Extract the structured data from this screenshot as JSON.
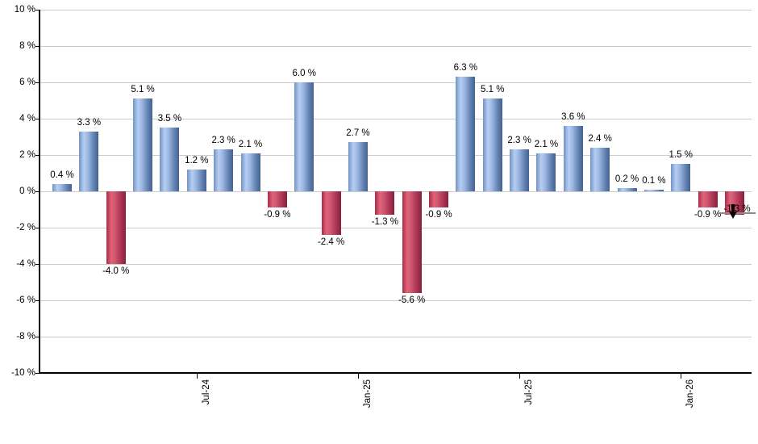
{
  "chart_data": {
    "type": "bar",
    "title": "",
    "xlabel": "",
    "ylabel": "",
    "grid": true,
    "legend": false,
    "ylim": [
      -10,
      10
    ],
    "y_axis": {
      "unit": "%",
      "step": 2,
      "tick_labels": [
        "10 %",
        "8 %",
        "6 %",
        "4 %",
        "2 %",
        "0 %",
        "-2 %",
        "-4 %",
        "-6 %",
        "-8 %",
        "-10 %"
      ]
    },
    "x_axis": {
      "tick_labels": [
        {
          "label": "Jul-24",
          "bar_index": 5
        },
        {
          "label": "Jan-25",
          "bar_index": 11
        },
        {
          "label": "Jul-25",
          "bar_index": 17
        },
        {
          "label": "Jan-26",
          "bar_index": 23
        }
      ]
    },
    "bars": [
      {
        "value": 0.4,
        "label": "0.4 %"
      },
      {
        "value": 3.3,
        "label": "3.3 %"
      },
      {
        "value": -4.0,
        "label": "-4.0 %"
      },
      {
        "value": 5.1,
        "label": "5.1 %"
      },
      {
        "value": 3.5,
        "label": "3.5 %"
      },
      {
        "value": 1.2,
        "label": "1.2 %"
      },
      {
        "value": 2.3,
        "label": "2.3 %"
      },
      {
        "value": 2.1,
        "label": "2.1 %"
      },
      {
        "value": -0.9,
        "label": "-0.9 %"
      },
      {
        "value": 6.0,
        "label": "6.0 %"
      },
      {
        "value": -2.4,
        "label": "-2.4 %"
      },
      {
        "value": 2.7,
        "label": "2.7 %"
      },
      {
        "value": -1.3,
        "label": "-1.3 %"
      },
      {
        "value": -5.6,
        "label": "-5.6 %"
      },
      {
        "value": -0.9,
        "label": "-0.9 %"
      },
      {
        "value": 6.3,
        "label": "6.3 %"
      },
      {
        "value": 5.1,
        "label": "5.1 %"
      },
      {
        "value": 2.3,
        "label": "2.3 %"
      },
      {
        "value": 2.1,
        "label": "2.1 %"
      },
      {
        "value": 3.6,
        "label": "3.6 %"
      },
      {
        "value": 2.4,
        "label": "2.4 %"
      },
      {
        "value": 0.2,
        "label": "0.2 %"
      },
      {
        "value": 0.1,
        "label": "0.1 %"
      },
      {
        "value": 1.5,
        "label": "1.5 %"
      },
      {
        "value": -0.9,
        "label": "-0.9 %"
      },
      {
        "value": -1.3,
        "label": "-1.3 %"
      }
    ],
    "colors": {
      "positive_bar": "#89a7d8",
      "positive_bar_highlight": "#b6cff2",
      "positive_bar_edge": "#44628f",
      "negative_bar": "#c94a64",
      "negative_bar_highlight": "#e16379",
      "negative_bar_edge": "#87203e",
      "gridline": "#cccccc",
      "axis": "#000000",
      "text": "#000000"
    }
  },
  "cursor": {
    "present": true,
    "bar_index": 25,
    "icon": "mouse-cursor-down-arrow",
    "underline_color": "#8a8a8a"
  }
}
